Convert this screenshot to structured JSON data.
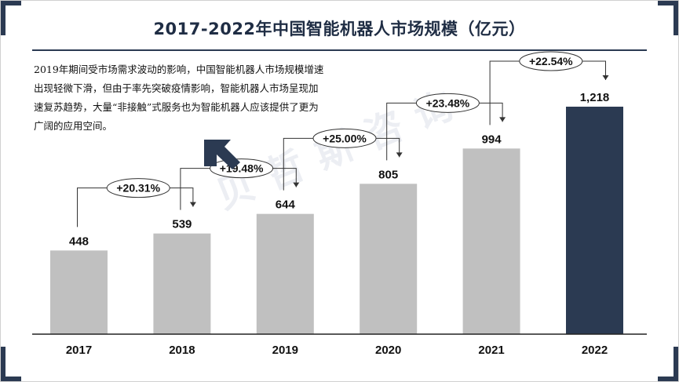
{
  "slide": {
    "title": "2017-2022年中国智能机器人市场规模（亿元）",
    "description": "2019年期间受市场需求波动的影响，中国智能机器人市场规模增速出现轻微下滑，但由于率先突破疫情影响，智能机器人市场呈现加速复苏趋势，大量“非接触”式服务也为智能机器人应该提供了更为广阔的应用空间。",
    "watermark": "贝哲斯咨询",
    "accent_color": "#2b3a52"
  },
  "chart_data": {
    "type": "bar",
    "title": "2017-2022年中国智能机器人市场规模（亿元）",
    "categories": [
      "2017",
      "2018",
      "2019",
      "2020",
      "2021",
      "2022"
    ],
    "values": [
      448,
      539,
      644,
      805,
      994,
      1218
    ],
    "value_labels": [
      "448",
      "539",
      "644",
      "805",
      "994",
      "1,218"
    ],
    "growth_labels": [
      "+20.31%",
      "+19.48%",
      "+25.00%",
      "+23.48%",
      "+22.54%"
    ],
    "bar_colors": [
      "#c0c0c0",
      "#c0c0c0",
      "#c0c0c0",
      "#c0c0c0",
      "#c0c0c0",
      "#2b3a52"
    ],
    "ylim": [
      0,
      1218
    ],
    "xlabel": "",
    "ylabel": "",
    "grid": false,
    "legend": "none"
  }
}
